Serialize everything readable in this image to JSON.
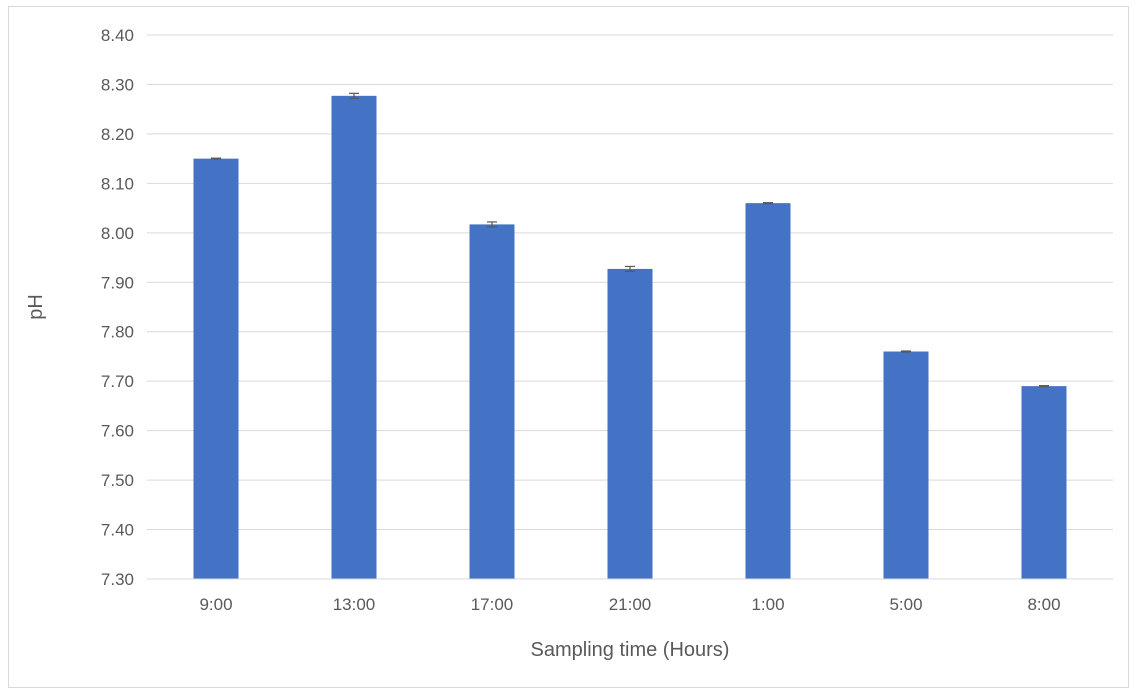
{
  "chart_data": {
    "type": "bar",
    "title": "",
    "xlabel": "Sampling time (Hours)",
    "ylabel": "pH",
    "categories": [
      "9:00",
      "13:00",
      "17:00",
      "21:00",
      "1:00",
      "5:00",
      "8:00"
    ],
    "series": [
      {
        "values": [
          8.15,
          8.277,
          8.017,
          7.927,
          8.06,
          7.76,
          7.69
        ],
        "errors": [
          0.001,
          0.005,
          0.005,
          0.005,
          0.001,
          0.001,
          0.001
        ],
        "color": "#4472c4"
      }
    ],
    "ylim": [
      7.3,
      8.4
    ],
    "yticks": [
      "7.30",
      "7.40",
      "7.50",
      "7.60",
      "7.70",
      "7.80",
      "7.90",
      "8.00",
      "8.10",
      "8.20",
      "8.30",
      "8.40"
    ],
    "grid": true,
    "legend": "none"
  }
}
